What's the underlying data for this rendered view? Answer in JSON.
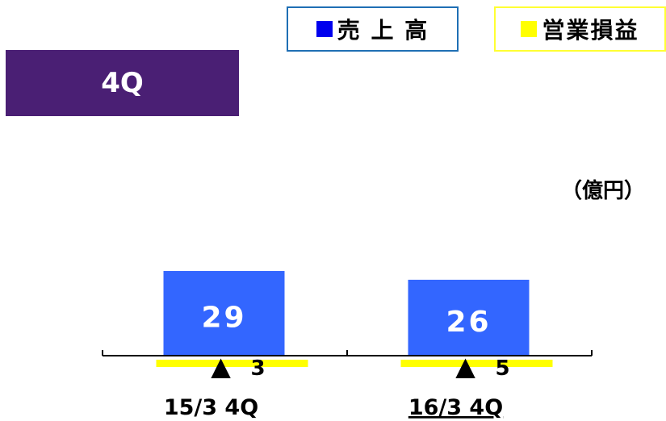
{
  "legend": {
    "sales": {
      "label": "売 上 高",
      "color": "#0000ee"
    },
    "operating_income": {
      "label": "営業損益",
      "color": "#ffff00"
    }
  },
  "period_tab": {
    "label": "4Q",
    "color": "#4a1f74"
  },
  "unit": "（億円）",
  "chart_data": {
    "type": "bar",
    "categories": [
      "15/3 4Q",
      "16/3 4Q"
    ],
    "series": [
      {
        "name": "売 上 高",
        "values": [
          29,
          26
        ],
        "labels": [
          "29",
          "26"
        ],
        "color": "#3366ff"
      },
      {
        "name": "営業損益",
        "values": [
          -3,
          -5
        ],
        "labels": [
          "3",
          "5"
        ],
        "color": "#ffff00"
      }
    ],
    "negative_marker": "▲",
    "underlined_category": "16/3 4Q"
  }
}
